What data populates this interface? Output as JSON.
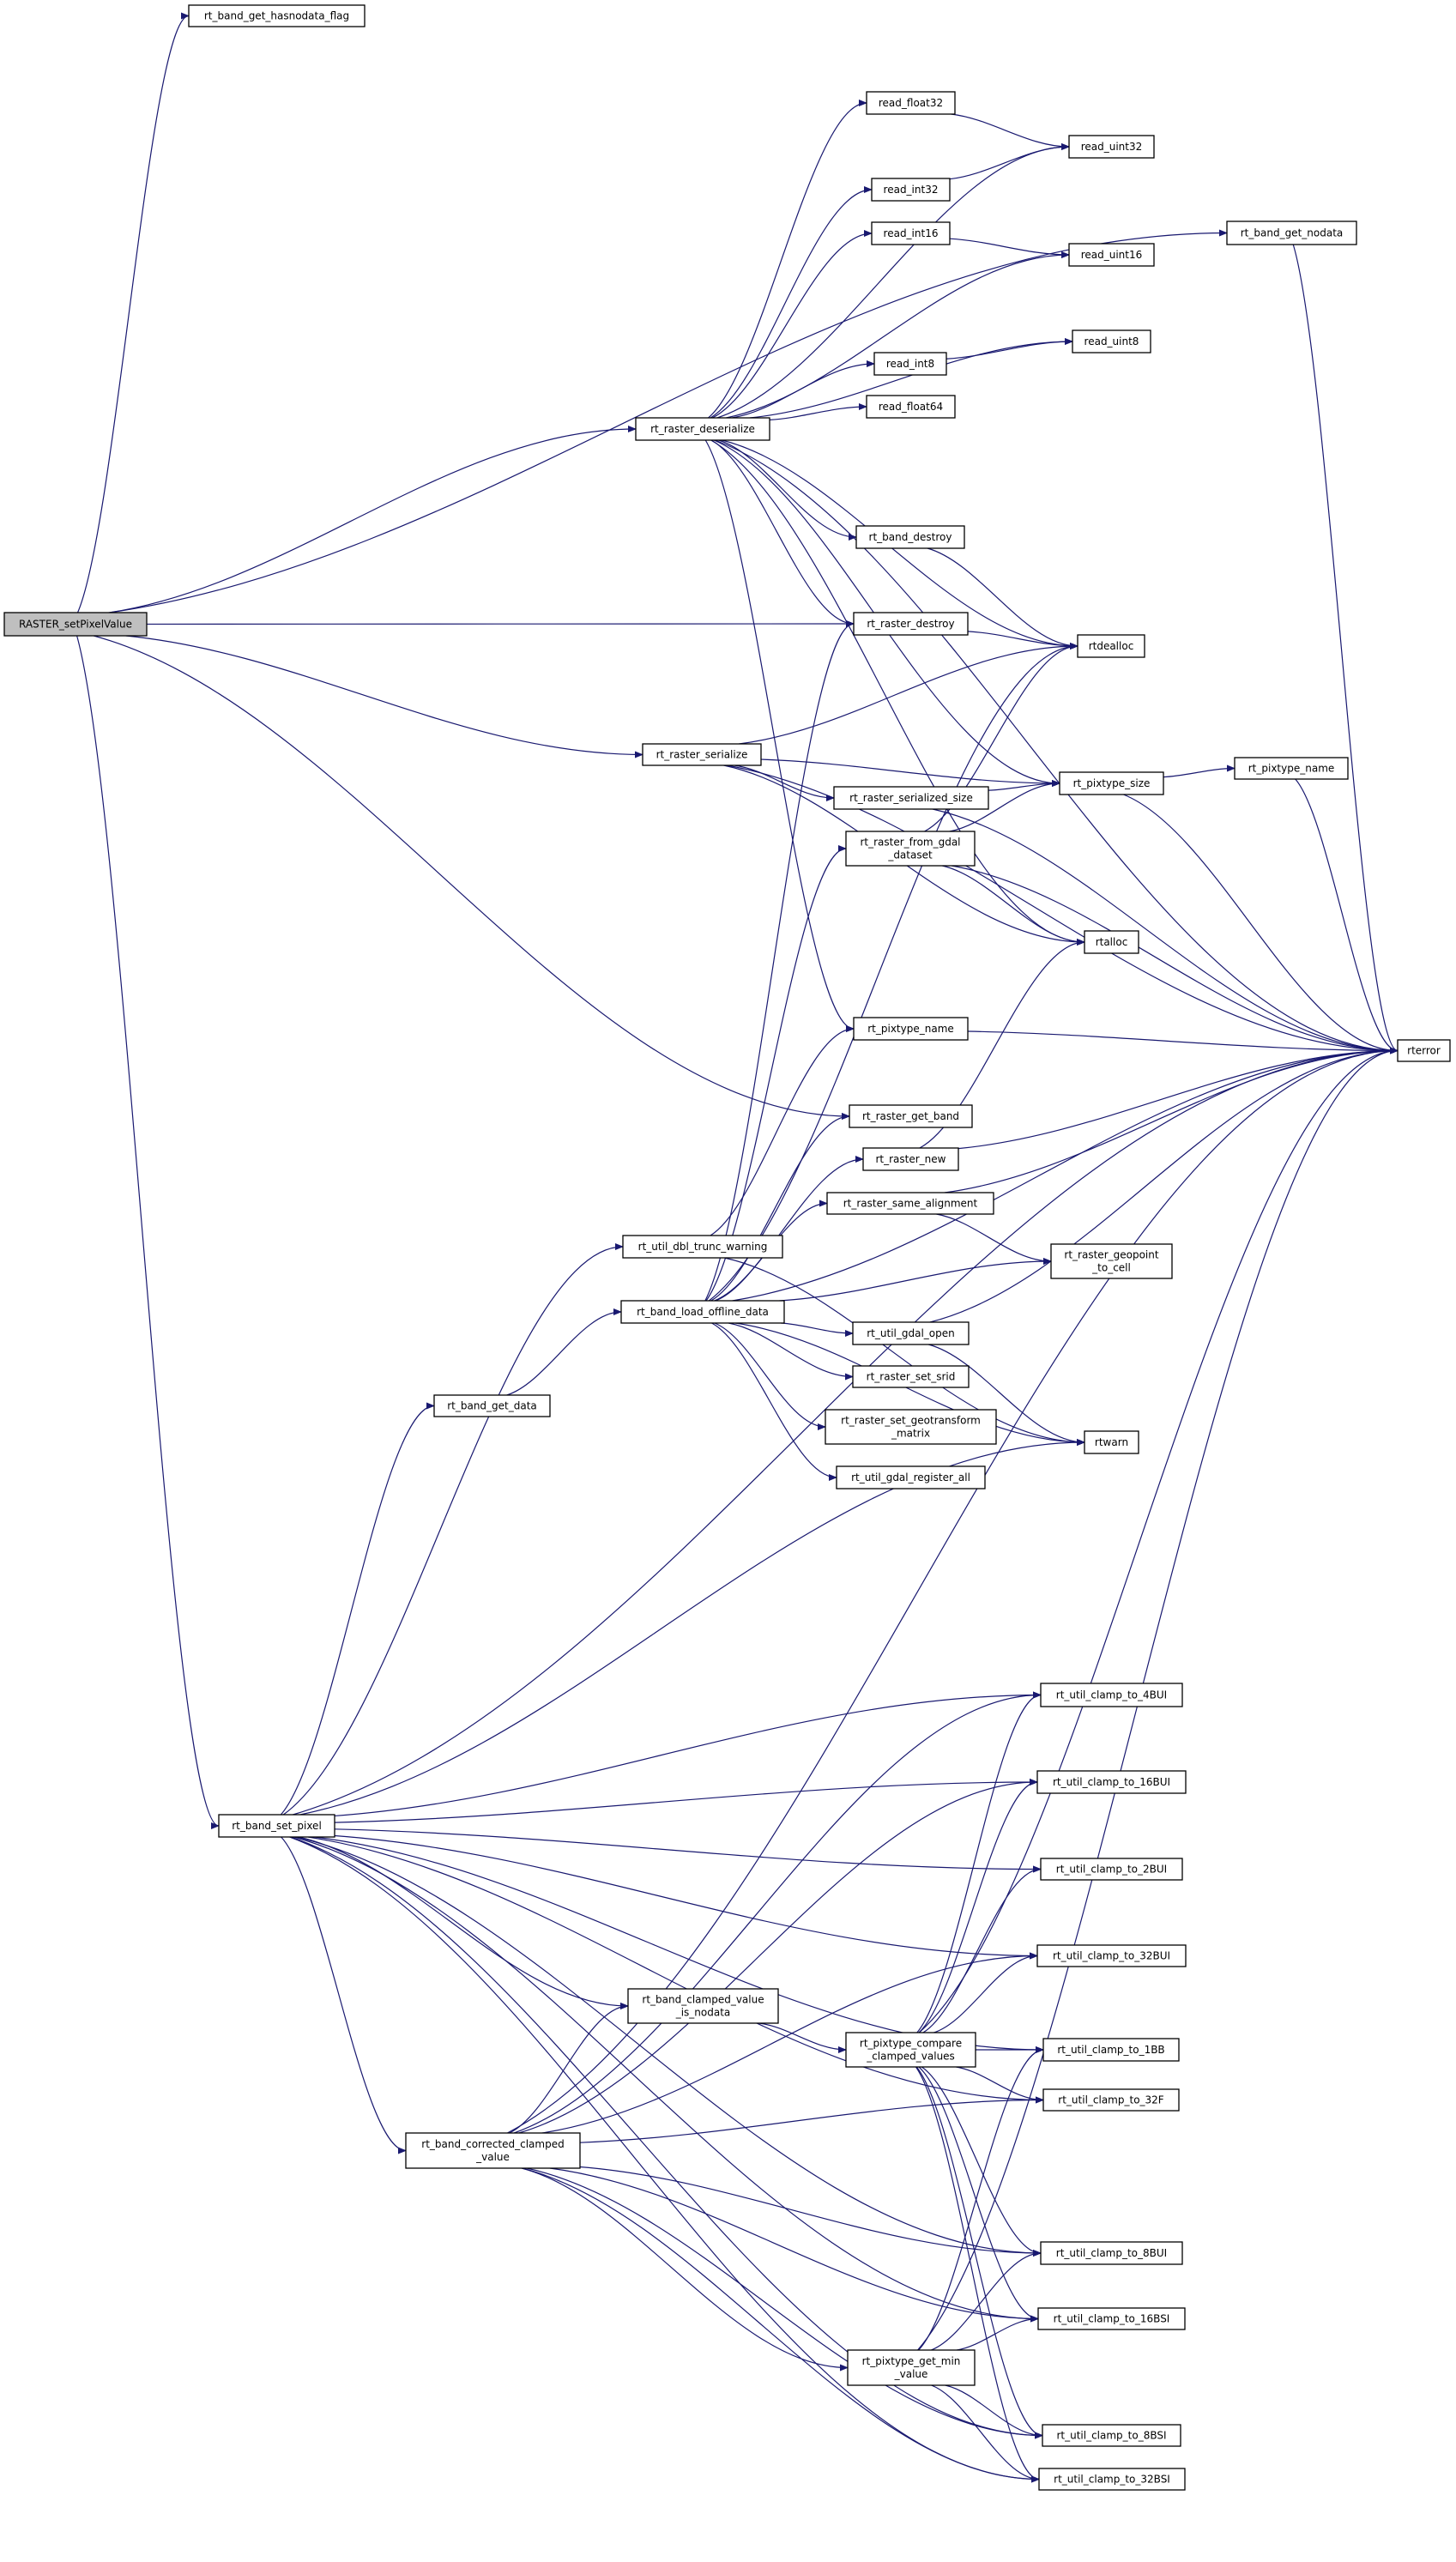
{
  "colors": {
    "edge": "#191970",
    "node_border": "#000000",
    "truncated_border": "#ff0000",
    "root_fill": "#bfbfbf",
    "background": "#ffffff"
  },
  "nodes": {
    "raster_setpixelvalue": {
      "lines": [
        "RASTER_setPixelValue"
      ],
      "root": true
    },
    "band_get_hasnodata_flag": {
      "lines": [
        "rt_band_get_hasnodata_flag"
      ]
    },
    "band_get_nodata": {
      "lines": [
        "rt_band_get_nodata"
      ]
    },
    "read_float32": {
      "lines": [
        "read_float32"
      ]
    },
    "read_uint32": {
      "lines": [
        "read_uint32"
      ]
    },
    "read_int32": {
      "lines": [
        "read_int32"
      ]
    },
    "read_int16": {
      "lines": [
        "read_int16"
      ]
    },
    "read_uint16": {
      "lines": [
        "read_uint16"
      ]
    },
    "read_uint8": {
      "lines": [
        "read_uint8"
      ]
    },
    "read_int8": {
      "lines": [
        "read_int8"
      ]
    },
    "read_float64": {
      "lines": [
        "read_float64"
      ]
    },
    "raster_deserialize": {
      "lines": [
        "rt_raster_deserialize"
      ]
    },
    "band_destroy": {
      "lines": [
        "rt_band_destroy"
      ]
    },
    "raster_destroy": {
      "lines": [
        "rt_raster_destroy"
      ]
    },
    "rtdealloc": {
      "lines": [
        "rtdealloc"
      ]
    },
    "raster_serialize": {
      "lines": [
        "rt_raster_serialize"
      ]
    },
    "pixtype_size": {
      "lines": [
        "rt_pixtype_size"
      ]
    },
    "pixtype_name_a": {
      "lines": [
        "rt_pixtype_name"
      ]
    },
    "raster_serialized_size": {
      "lines": [
        "rt_raster_serialized_size"
      ]
    },
    "raster_from_gdal_dataset": {
      "lines": [
        "rt_raster_from_gdal",
        "_dataset"
      ],
      "truncated": true
    },
    "rtalloc": {
      "lines": [
        "rtalloc"
      ]
    },
    "pixtype_name_b": {
      "lines": [
        "rt_pixtype_name"
      ]
    },
    "rterror": {
      "lines": [
        "rterror"
      ]
    },
    "raster_get_band": {
      "lines": [
        "rt_raster_get_band"
      ]
    },
    "raster_new": {
      "lines": [
        "rt_raster_new"
      ],
      "truncated": true
    },
    "raster_same_alignment": {
      "lines": [
        "rt_raster_same_alignment"
      ],
      "truncated": true
    },
    "raster_geopoint_to_cell": {
      "lines": [
        "rt_raster_geopoint",
        "_to_cell"
      ],
      "truncated": true
    },
    "util_dbl_trunc_warning": {
      "lines": [
        "rt_util_dbl_trunc_warning"
      ]
    },
    "band_load_offline_data": {
      "lines": [
        "rt_band_load_offline_data"
      ],
      "truncated": true
    },
    "util_gdal_open": {
      "lines": [
        "rt_util_gdal_open"
      ],
      "truncated": true
    },
    "raster_set_srid": {
      "lines": [
        "rt_raster_set_srid"
      ],
      "truncated": true
    },
    "raster_set_geotransform_matrix": {
      "lines": [
        "rt_raster_set_geotransform",
        "_matrix"
      ],
      "truncated": true
    },
    "band_get_data": {
      "lines": [
        "rt_band_get_data"
      ]
    },
    "rtwarn": {
      "lines": [
        "rtwarn"
      ]
    },
    "util_gdal_register_all": {
      "lines": [
        "rt_util_gdal_register_all"
      ]
    },
    "band_set_pixel": {
      "lines": [
        "rt_band_set_pixel"
      ]
    },
    "clamp_4bui": {
      "lines": [
        "rt_util_clamp_to_4BUI"
      ]
    },
    "clamp_16bui": {
      "lines": [
        "rt_util_clamp_to_16BUI"
      ]
    },
    "clamp_2bui": {
      "lines": [
        "rt_util_clamp_to_2BUI"
      ]
    },
    "clamp_32bui": {
      "lines": [
        "rt_util_clamp_to_32BUI"
      ]
    },
    "band_clamped_value_is_nodata": {
      "lines": [
        "rt_band_clamped_value",
        "_is_nodata"
      ]
    },
    "pixtype_compare_clamped_values": {
      "lines": [
        "rt_pixtype_compare",
        "_clamped_values"
      ]
    },
    "clamp_1bb": {
      "lines": [
        "rt_util_clamp_to_1BB"
      ]
    },
    "clamp_32f": {
      "lines": [
        "rt_util_clamp_to_32F"
      ]
    },
    "band_corrected_clamped_value": {
      "lines": [
        "rt_band_corrected_clamped",
        "_value"
      ]
    },
    "clamp_8bui": {
      "lines": [
        "rt_util_clamp_to_8BUI"
      ]
    },
    "clamp_16bsi": {
      "lines": [
        "rt_util_clamp_to_16BSI"
      ]
    },
    "pixtype_get_min_value": {
      "lines": [
        "rt_pixtype_get_min",
        "_value"
      ]
    },
    "clamp_8bsi": {
      "lines": [
        "rt_util_clamp_to_8BSI"
      ]
    },
    "clamp_32bsi": {
      "lines": [
        "rt_util_clamp_to_32BSI"
      ]
    }
  },
  "edges": [
    [
      "raster_setpixelvalue",
      "band_get_hasnodata_flag"
    ],
    [
      "raster_setpixelvalue",
      "band_get_nodata"
    ],
    [
      "raster_setpixelvalue",
      "raster_deserialize"
    ],
    [
      "raster_setpixelvalue",
      "raster_destroy"
    ],
    [
      "raster_setpixelvalue",
      "raster_serialize"
    ],
    [
      "raster_setpixelvalue",
      "raster_get_band"
    ],
    [
      "raster_setpixelvalue",
      "band_set_pixel"
    ],
    [
      "band_get_nodata",
      "rterror"
    ],
    [
      "raster_deserialize",
      "read_float32"
    ],
    [
      "raster_deserialize",
      "read_uint32"
    ],
    [
      "raster_deserialize",
      "read_int32"
    ],
    [
      "raster_deserialize",
      "read_int16"
    ],
    [
      "raster_deserialize",
      "read_uint16"
    ],
    [
      "raster_deserialize",
      "read_uint8"
    ],
    [
      "raster_deserialize",
      "read_int8"
    ],
    [
      "raster_deserialize",
      "read_float64"
    ],
    [
      "raster_deserialize",
      "rterror"
    ],
    [
      "raster_deserialize",
      "rtdealloc"
    ],
    [
      "raster_deserialize",
      "band_destroy"
    ],
    [
      "raster_deserialize",
      "raster_destroy"
    ],
    [
      "raster_deserialize",
      "pixtype_size"
    ],
    [
      "raster_deserialize",
      "rtalloc"
    ],
    [
      "raster_deserialize",
      "pixtype_name_b"
    ],
    [
      "read_float32",
      "read_uint32"
    ],
    [
      "read_int32",
      "read_uint32"
    ],
    [
      "read_int16",
      "read_uint16"
    ],
    [
      "read_int8",
      "read_uint8"
    ],
    [
      "band_destroy",
      "rtdealloc"
    ],
    [
      "raster_destroy",
      "rtdealloc"
    ],
    [
      "raster_serialize",
      "rtdealloc"
    ],
    [
      "raster_serialize",
      "pixtype_size"
    ],
    [
      "raster_serialize",
      "raster_serialized_size"
    ],
    [
      "raster_serialize",
      "rtalloc"
    ],
    [
      "raster_serialize",
      "rterror"
    ],
    [
      "raster_serialized_size",
      "pixtype_size"
    ],
    [
      "raster_serialized_size",
      "rterror"
    ],
    [
      "pixtype_size",
      "pixtype_name_a"
    ],
    [
      "pixtype_size",
      "rterror"
    ],
    [
      "pixtype_name_a",
      "rterror"
    ],
    [
      "raster_from_gdal_dataset",
      "pixtype_size"
    ],
    [
      "raster_from_gdal_dataset",
      "rtdealloc"
    ],
    [
      "raster_from_gdal_dataset",
      "rtalloc"
    ],
    [
      "raster_from_gdal_dataset",
      "rterror"
    ],
    [
      "pixtype_name_b",
      "rterror"
    ],
    [
      "raster_new",
      "rtalloc"
    ],
    [
      "raster_new",
      "rterror"
    ],
    [
      "raster_same_alignment",
      "rterror"
    ],
    [
      "raster_same_alignment",
      "raster_geopoint_to_cell"
    ],
    [
      "util_dbl_trunc_warning",
      "pixtype_name_b"
    ],
    [
      "util_dbl_trunc_warning",
      "rtwarn"
    ],
    [
      "band_load_offline_data",
      "raster_destroy"
    ],
    [
      "band_load_offline_data",
      "rtdealloc"
    ],
    [
      "band_load_offline_data",
      "raster_from_gdal_dataset"
    ],
    [
      "band_load_offline_data",
      "raster_get_band"
    ],
    [
      "band_load_offline_data",
      "raster_new"
    ],
    [
      "band_load_offline_data",
      "raster_same_alignment"
    ],
    [
      "band_load_offline_data",
      "raster_geopoint_to_cell"
    ],
    [
      "band_load_offline_data",
      "util_gdal_open"
    ],
    [
      "band_load_offline_data",
      "raster_set_srid"
    ],
    [
      "band_load_offline_data",
      "raster_set_geotransform_matrix"
    ],
    [
      "band_load_offline_data",
      "util_gdal_register_all"
    ],
    [
      "band_load_offline_data",
      "rtwarn"
    ],
    [
      "band_load_offline_data",
      "rterror"
    ],
    [
      "util_gdal_open",
      "rterror"
    ],
    [
      "util_gdal_open",
      "rtwarn"
    ],
    [
      "band_get_data",
      "band_load_offline_data"
    ],
    [
      "band_set_pixel",
      "rterror"
    ],
    [
      "band_set_pixel",
      "util_dbl_trunc_warning"
    ],
    [
      "band_set_pixel",
      "band_get_data"
    ],
    [
      "band_set_pixel",
      "rtwarn"
    ],
    [
      "band_set_pixel",
      "clamp_4bui"
    ],
    [
      "band_set_pixel",
      "clamp_16bui"
    ],
    [
      "band_set_pixel",
      "clamp_2bui"
    ],
    [
      "band_set_pixel",
      "clamp_32bui"
    ],
    [
      "band_set_pixel",
      "band_clamped_value_is_nodata"
    ],
    [
      "band_set_pixel",
      "band_corrected_clamped_value"
    ],
    [
      "band_set_pixel",
      "clamp_1bb"
    ],
    [
      "band_set_pixel",
      "clamp_32f"
    ],
    [
      "band_set_pixel",
      "clamp_8bui"
    ],
    [
      "band_set_pixel",
      "clamp_16bsi"
    ],
    [
      "band_set_pixel",
      "clamp_8bsi"
    ],
    [
      "band_set_pixel",
      "clamp_32bsi"
    ],
    [
      "band_corrected_clamped_value",
      "clamp_4bui"
    ],
    [
      "band_corrected_clamped_value",
      "clamp_16bui"
    ],
    [
      "band_corrected_clamped_value",
      "clamp_32bui"
    ],
    [
      "band_corrected_clamped_value",
      "band_clamped_value_is_nodata"
    ],
    [
      "band_corrected_clamped_value",
      "clamp_32f"
    ],
    [
      "band_corrected_clamped_value",
      "rterror"
    ],
    [
      "band_corrected_clamped_value",
      "clamp_8bui"
    ],
    [
      "band_corrected_clamped_value",
      "clamp_16bsi"
    ],
    [
      "band_corrected_clamped_value",
      "pixtype_get_min_value"
    ],
    [
      "band_corrected_clamped_value",
      "clamp_8bsi"
    ],
    [
      "band_corrected_clamped_value",
      "clamp_32bsi"
    ],
    [
      "band_clamped_value_is_nodata",
      "pixtype_compare_clamped_values"
    ],
    [
      "pixtype_compare_clamped_values",
      "clamp_4bui"
    ],
    [
      "pixtype_compare_clamped_values",
      "clamp_16bui"
    ],
    [
      "pixtype_compare_clamped_values",
      "clamp_2bui"
    ],
    [
      "pixtype_compare_clamped_values",
      "clamp_32bui"
    ],
    [
      "pixtype_compare_clamped_values",
      "clamp_1bb"
    ],
    [
      "pixtype_compare_clamped_values",
      "clamp_32f"
    ],
    [
      "pixtype_compare_clamped_values",
      "rterror"
    ],
    [
      "pixtype_compare_clamped_values",
      "clamp_8bui"
    ],
    [
      "pixtype_compare_clamped_values",
      "clamp_16bsi"
    ],
    [
      "pixtype_compare_clamped_values",
      "clamp_8bsi"
    ],
    [
      "pixtype_compare_clamped_values",
      "clamp_32bsi"
    ],
    [
      "pixtype_get_min_value",
      "clamp_1bb"
    ],
    [
      "pixtype_get_min_value",
      "clamp_8bui"
    ],
    [
      "pixtype_get_min_value",
      "clamp_16bsi"
    ],
    [
      "pixtype_get_min_value",
      "rterror"
    ],
    [
      "pixtype_get_min_value",
      "clamp_8bsi"
    ],
    [
      "pixtype_get_min_value",
      "clamp_32bsi"
    ]
  ]
}
